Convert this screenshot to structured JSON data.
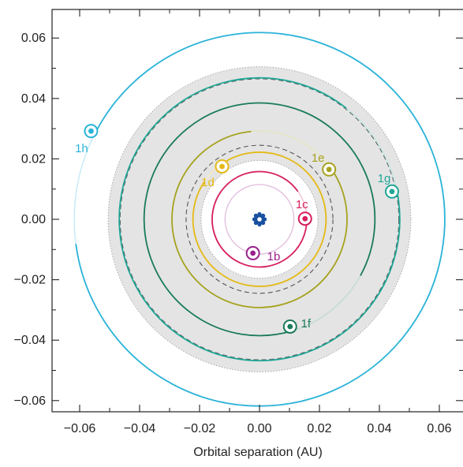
{
  "chart_data": {
    "type": "scatter",
    "title": "",
    "xlabel": "Orbital separation (AU)",
    "ylabel": "",
    "xlim": [
      -0.07,
      0.065
    ],
    "ylim": [
      -0.07,
      0.068
    ],
    "grid": false,
    "x_ticks": [
      -0.06,
      -0.04,
      -0.02,
      0.0,
      0.02,
      0.04,
      0.06
    ],
    "y_ticks": [
      0.06,
      0.04,
      0.02,
      0.0,
      -0.02,
      -0.04,
      -0.06
    ],
    "x_tick_labels": [
      "−0.06",
      "−0.04",
      "−0.02",
      "0.00",
      "0.02",
      "0.04",
      "0.06"
    ],
    "y_tick_labels": [
      "0.06",
      "0.04",
      "0.02",
      "0.00",
      "−0.02",
      "−0.04",
      "−0.06"
    ],
    "star": {
      "x": 0.0,
      "y": 0.0,
      "color": "#1a4fa0",
      "icon": "star-icon"
    },
    "habitable_zone": {
      "inner_edge_radius": 0.0195,
      "outer_edge_radius": 0.0505,
      "inner_dashed_radius": 0.0245,
      "outer_dashed_radius": 0.0465,
      "color": "#e4e4e4"
    },
    "planets": [
      {
        "name": "1b",
        "x": -0.0022,
        "y": -0.0112,
        "orbit_radius": 0.0115,
        "color": "#9b1f8c",
        "start_angle_deg": 270,
        "sweep_deg": 360
      },
      {
        "name": "1c",
        "x": 0.0152,
        "y": 0.0002,
        "orbit_radius": 0.0158,
        "color": "#d61f5e",
        "start_angle_deg": 90,
        "sweep_deg": 325
      },
      {
        "name": "1d",
        "x": -0.0125,
        "y": 0.0175,
        "orbit_radius": 0.0222,
        "color": "#e4b917",
        "start_angle_deg": 130,
        "sweep_deg": 340
      },
      {
        "name": "1e",
        "x": 0.0232,
        "y": 0.0165,
        "orbit_radius": 0.0292,
        "color": "#a6a21f",
        "start_angle_deg": 355,
        "sweep_deg": 300
      },
      {
        "name": "1f",
        "x": 0.0102,
        "y": -0.0355,
        "orbit_radius": 0.0385,
        "color": "#1a7a5a",
        "start_angle_deg": 130,
        "sweep_deg": 315
      },
      {
        "name": "1g",
        "x": 0.0442,
        "y": 0.0092,
        "orbit_radius": 0.0468,
        "color": "#20a796",
        "start_angle_deg": 55,
        "sweep_deg": 320
      },
      {
        "name": "1h",
        "x": -0.0562,
        "y": 0.0292,
        "orbit_radius": 0.0618,
        "color": "#2bb3d8",
        "start_angle_deg": 200,
        "sweep_deg": 325
      }
    ]
  }
}
